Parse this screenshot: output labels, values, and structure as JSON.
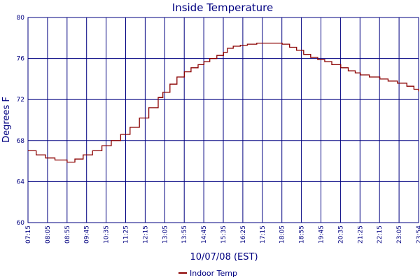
{
  "chart_data": {
    "type": "line",
    "title": "Inside Temperature",
    "xlabel": "10/07/08 (EST)",
    "ylabel": "Degrees F",
    "ylim": [
      60,
      80
    ],
    "yticks": [
      "80",
      "76",
      "72",
      "68",
      "64",
      "60"
    ],
    "ytick_values": [
      80,
      76,
      72,
      68,
      64,
      60
    ],
    "xticks": [
      "07:15",
      "08:05",
      "08:55",
      "09:45",
      "10:35",
      "11:25",
      "12:15",
      "13:05",
      "13:55",
      "14:45",
      "15:35",
      "16:25",
      "17:15",
      "18:05",
      "18:55",
      "19:45",
      "20:35",
      "21:25",
      "22:15",
      "23:05",
      "23:54"
    ],
    "grid": true,
    "legend_position": "bottom-center",
    "colors": {
      "axis": "#000080",
      "grid": "#000080",
      "series": "#8b0000"
    },
    "series": [
      {
        "name": "Indoor Temp",
        "step": true,
        "x_hours": [
          7.25,
          7.6,
          8.0,
          8.4,
          8.917,
          9.25,
          9.6,
          10.0,
          10.4,
          10.8,
          11.2,
          11.6,
          12.0,
          12.4,
          12.8,
          13.0,
          13.3,
          13.6,
          13.917,
          14.2,
          14.5,
          14.75,
          15.0,
          15.3,
          15.583,
          15.75,
          16.0,
          16.3,
          16.6,
          17.0,
          17.3,
          17.6,
          18.083,
          18.4,
          18.7,
          19.0,
          19.3,
          19.6,
          19.9,
          20.2,
          20.583,
          20.9,
          21.2,
          21.417,
          21.8,
          22.25,
          22.6,
          23.0,
          23.4,
          23.7,
          23.9
        ],
        "values": [
          67.0,
          66.6,
          66.3,
          66.1,
          65.9,
          66.2,
          66.6,
          67.0,
          67.5,
          68.0,
          68.6,
          69.3,
          70.2,
          71.2,
          72.2,
          72.7,
          73.5,
          74.2,
          74.7,
          75.1,
          75.4,
          75.7,
          76.0,
          76.3,
          76.6,
          77.0,
          77.2,
          77.3,
          77.4,
          77.5,
          77.5,
          77.5,
          77.4,
          77.1,
          76.8,
          76.4,
          76.1,
          75.9,
          75.7,
          75.4,
          75.1,
          74.8,
          74.6,
          74.4,
          74.2,
          74.0,
          73.8,
          73.6,
          73.3,
          73.0,
          72.8
        ]
      }
    ]
  }
}
